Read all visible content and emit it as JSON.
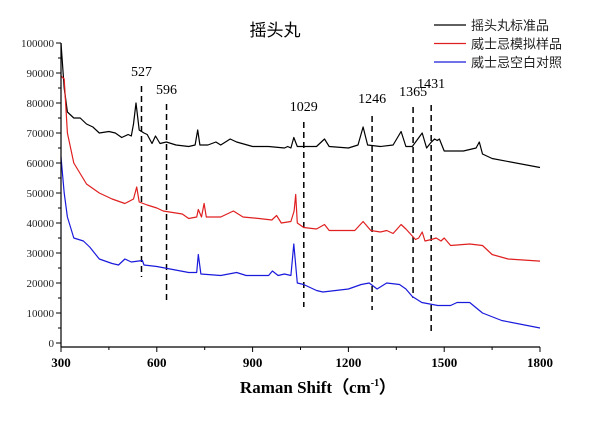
{
  "chart_data": {
    "type": "line",
    "title": "摇头丸",
    "xlabel": "Raman Shift（cm",
    "xlabel_sup": "-1",
    "xlabel_end": "）",
    "ylabel": "",
    "xlim": [
      300,
      1800
    ],
    "ylim": [
      0,
      100000
    ],
    "xticks": [
      300,
      600,
      900,
      1200,
      1500,
      1800
    ],
    "yticks": [
      0,
      10000,
      20000,
      30000,
      40000,
      50000,
      60000,
      70000,
      80000,
      90000,
      100000
    ],
    "grid": false,
    "legend_position": "top-right",
    "annotations": [
      {
        "label": "527",
        "x": 527
      },
      {
        "label": "596",
        "x": 596
      },
      {
        "label": "1029",
        "x": 1029
      },
      {
        "label": "1246",
        "x": 1246
      },
      {
        "label": "1365",
        "x": 1365
      },
      {
        "label": "1431",
        "x": 1431
      }
    ],
    "series": [
      {
        "name": "摇头丸标准品",
        "color": "#000000",
        "x": [
          300,
          310,
          320,
          340,
          360,
          380,
          400,
          420,
          450,
          470,
          490,
          510,
          520,
          527,
          535,
          545,
          560,
          570,
          585,
          596,
          610,
          630,
          660,
          700,
          720,
          728,
          735,
          760,
          785,
          800,
          830,
          850,
          900,
          950,
          1000,
          1010,
          1020,
          1029,
          1040,
          1100,
          1125,
          1140,
          1200,
          1230,
          1246,
          1260,
          1300,
          1340,
          1365,
          1380,
          1400,
          1431,
          1445,
          1460,
          1470,
          1478,
          1485,
          1500,
          1560,
          1600,
          1610,
          1620,
          1650,
          1800
        ],
        "y": [
          100000,
          85000,
          77000,
          75000,
          75000,
          73000,
          72000,
          70000,
          70500,
          70000,
          68500,
          69500,
          69000,
          73000,
          80000,
          71000,
          70000,
          69500,
          66500,
          69000,
          66500,
          67000,
          66000,
          65500,
          66000,
          71000,
          66000,
          66000,
          67000,
          66000,
          68000,
          67000,
          65500,
          65500,
          65000,
          65500,
          65000,
          68500,
          65500,
          65500,
          68000,
          65500,
          65000,
          66000,
          72000,
          66000,
          65500,
          66000,
          70500,
          65500,
          65500,
          70000,
          65000,
          67000,
          68000,
          67500,
          68000,
          64000,
          64000,
          65000,
          67000,
          63000,
          61500,
          58500
        ]
      },
      {
        "name": "威士忌模拟样品",
        "color": "#e02020",
        "x": [
          300,
          310,
          320,
          340,
          380,
          420,
          460,
          500,
          527,
          537,
          545,
          570,
          600,
          620,
          680,
          700,
          725,
          730,
          740,
          748,
          755,
          800,
          840,
          870,
          920,
          960,
          975,
          990,
          1020,
          1030,
          1035,
          1040,
          1060,
          1100,
          1125,
          1140,
          1220,
          1246,
          1270,
          1300,
          1320,
          1340,
          1365,
          1380,
          1410,
          1420,
          1431,
          1440,
          1460,
          1475,
          1490,
          1500,
          1520,
          1580,
          1620,
          1650,
          1700,
          1800
        ],
        "y": [
          89000,
          88000,
          70000,
          60000,
          53000,
          50000,
          48000,
          46500,
          48000,
          52000,
          47000,
          46000,
          45000,
          44000,
          43000,
          41500,
          42000,
          44500,
          42000,
          46500,
          42000,
          42000,
          44000,
          42000,
          41500,
          41000,
          42500,
          40000,
          40500,
          44000,
          49500,
          40000,
          38500,
          38000,
          39500,
          37500,
          37500,
          40500,
          37500,
          37000,
          37500,
          36500,
          39500,
          38000,
          34500,
          35000,
          37000,
          34000,
          34500,
          35000,
          34000,
          35000,
          32500,
          33000,
          32500,
          29500,
          28000,
          27300
        ]
      },
      {
        "name": "威士忌空白对照",
        "color": "#1a1adc",
        "x": [
          300,
          310,
          320,
          340,
          370,
          390,
          420,
          460,
          480,
          500,
          520,
          555,
          560,
          600,
          650,
          700,
          725,
          730,
          738,
          800,
          850,
          880,
          950,
          962,
          980,
          1000,
          1020,
          1029,
          1040,
          1060,
          1100,
          1120,
          1200,
          1240,
          1265,
          1290,
          1320,
          1360,
          1380,
          1400,
          1430,
          1480,
          1520,
          1540,
          1580,
          1620,
          1680,
          1800
        ],
        "y": [
          62000,
          50000,
          42000,
          35000,
          34000,
          32000,
          28000,
          26500,
          26000,
          28000,
          27000,
          27500,
          26000,
          25500,
          24500,
          23500,
          23500,
          29500,
          23000,
          22500,
          23500,
          22500,
          22500,
          24000,
          22500,
          23000,
          22500,
          33000,
          20000,
          19500,
          17500,
          17000,
          18000,
          19500,
          20000,
          18000,
          20000,
          19500,
          18000,
          15500,
          13500,
          12500,
          12500,
          13500,
          13500,
          10000,
          7500,
          5000
        ]
      }
    ]
  }
}
